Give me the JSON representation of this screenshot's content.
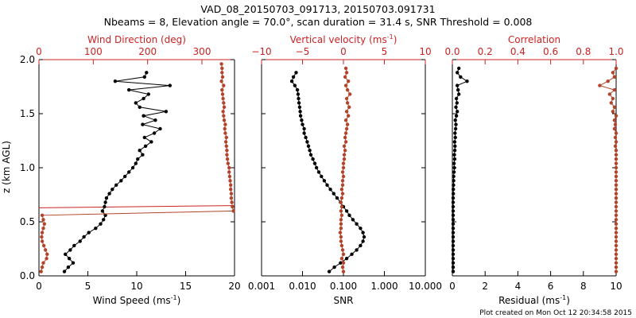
{
  "title_line1": "VAD_08_20150703_091713, 20150703.091731",
  "title_line2": "Nbeams = 8, Elevation angle = 70.0°, scan duration = 31.4 s, SNR Threshold = 0.008",
  "footer": "Plot created on Mon Oct 12 20:34:58 2015",
  "colors": {
    "black": "#000000",
    "red": "#cc2222",
    "marker_red": "#b5432a"
  },
  "chart_data": [
    {
      "type": "line",
      "name": "wind",
      "ylabel": "z (km AGL)",
      "ylim": [
        0,
        2.0
      ],
      "yticks": [
        0.0,
        0.5,
        1.0,
        1.5,
        2.0
      ],
      "ytick_labels": [
        "0.0",
        "0.5",
        "1.0",
        "1.5",
        "2.0"
      ],
      "bottom_axis": {
        "label": "Wind Speed (ms",
        "label_sup": "-1",
        "label_end": ")",
        "range": [
          0,
          20
        ],
        "ticks": [
          0,
          5,
          10,
          15,
          20
        ],
        "tick_labels": [
          "0",
          "5",
          "10",
          "15",
          "20"
        ]
      },
      "top_axis": {
        "label": "Wind Direction (deg)",
        "range": [
          0,
          360
        ],
        "ticks": [
          0,
          100,
          200,
          300
        ],
        "tick_labels": [
          "0",
          "100",
          "200",
          "300"
        ]
      },
      "series": [
        {
          "name": "Wind Speed",
          "axis": "bottom",
          "color": "#000000",
          "z": [
            0.04,
            0.08,
            0.12,
            0.16,
            0.2,
            0.24,
            0.28,
            0.32,
            0.36,
            0.4,
            0.44,
            0.48,
            0.52,
            0.56,
            0.6,
            0.64,
            0.68,
            0.72,
            0.76,
            0.8,
            0.84,
            0.88,
            0.92,
            0.96,
            1.0,
            1.04,
            1.08,
            1.12,
            1.16,
            1.2,
            1.24,
            1.28,
            1.32,
            1.36,
            1.4,
            1.44,
            1.48,
            1.52,
            1.56,
            1.6,
            1.64,
            1.68,
            1.72,
            1.76,
            1.8,
            1.84,
            1.88
          ],
          "values": [
            2.6,
            3.0,
            3.5,
            3.1,
            2.7,
            3.2,
            3.6,
            4.2,
            4.6,
            5.1,
            5.8,
            6.3,
            6.6,
            6.8,
            6.5,
            6.7,
            6.8,
            6.9,
            7.2,
            7.5,
            7.9,
            8.4,
            8.8,
            9.2,
            9.6,
            9.9,
            10.1,
            10.6,
            10.3,
            10.9,
            11.5,
            10.8,
            11.8,
            12.4,
            10.6,
            11.9,
            10.7,
            13.0,
            10.3,
            9.9,
            10.7,
            11.2,
            9.2,
            13.4,
            7.8,
            10.8,
            11.0
          ]
        },
        {
          "name": "Wind Direction",
          "axis": "top",
          "color": "#b5432a",
          "z": [
            0.04,
            0.08,
            0.12,
            0.16,
            0.2,
            0.24,
            0.28,
            0.32,
            0.36,
            0.4,
            0.44,
            0.48,
            0.52,
            0.56,
            0.6,
            0.64,
            0.68,
            0.72,
            0.76,
            0.8,
            0.84,
            0.88,
            0.92,
            0.96,
            1.0,
            1.04,
            1.08,
            1.12,
            1.16,
            1.2,
            1.24,
            1.28,
            1.32,
            1.36,
            1.4,
            1.44,
            1.48,
            1.52,
            1.56,
            1.6,
            1.64,
            1.68,
            1.72,
            1.76,
            1.8,
            1.84,
            1.88,
            1.92,
            1.96
          ],
          "values": [
            4,
            6,
            8,
            14,
            15,
            12,
            9,
            6,
            5,
            6,
            8,
            10,
            8,
            6,
            358,
            356,
            355,
            354,
            354,
            353,
            353,
            352,
            351,
            350,
            350,
            348,
            347,
            346,
            346,
            345,
            344,
            345,
            343,
            342,
            343,
            341,
            340,
            339,
            341,
            340,
            339,
            338,
            337,
            340,
            336,
            338,
            337,
            337,
            336
          ]
        }
      ],
      "annotation_line": {
        "color": "#cc2222",
        "z_left": 0.63,
        "z_right": 0.65
      }
    },
    {
      "type": "line",
      "name": "snr",
      "bottom_axis": {
        "label": "SNR",
        "scale": "log",
        "range": [
          0.001,
          10
        ],
        "ticks": [
          0.001,
          0.01,
          0.1,
          1,
          10
        ],
        "tick_labels": [
          "0.001",
          "0.010",
          "0.100",
          "1.000",
          "10.000"
        ]
      },
      "top_axis": {
        "label": "Vertical velocity (ms",
        "label_sup": "-1",
        "label_end": ")",
        "range": [
          -10,
          10
        ],
        "ticks": [
          -10,
          -5,
          0,
          5,
          10
        ],
        "tick_labels": [
          "−10",
          "−5",
          "0",
          "5",
          "10"
        ]
      },
      "series": [
        {
          "name": "SNR",
          "axis": "bottom",
          "color": "#000000",
          "z": [
            0.04,
            0.08,
            0.12,
            0.16,
            0.2,
            0.24,
            0.28,
            0.32,
            0.36,
            0.4,
            0.44,
            0.48,
            0.52,
            0.56,
            0.6,
            0.64,
            0.68,
            0.72,
            0.76,
            0.8,
            0.84,
            0.88,
            0.92,
            0.96,
            1.0,
            1.04,
            1.08,
            1.12,
            1.16,
            1.2,
            1.24,
            1.28,
            1.32,
            1.36,
            1.4,
            1.44,
            1.48,
            1.52,
            1.56,
            1.6,
            1.64,
            1.68,
            1.72,
            1.76,
            1.8,
            1.84,
            1.88
          ],
          "values": [
            0.045,
            0.06,
            0.085,
            0.12,
            0.16,
            0.21,
            0.26,
            0.3,
            0.32,
            0.3,
            0.26,
            0.21,
            0.17,
            0.14,
            0.12,
            0.1,
            0.085,
            0.07,
            0.058,
            0.048,
            0.04,
            0.034,
            0.029,
            0.025,
            0.022,
            0.02,
            0.018,
            0.016,
            0.015,
            0.014,
            0.013,
            0.012,
            0.011,
            0.011,
            0.01,
            0.0095,
            0.009,
            0.0088,
            0.0085,
            0.0082,
            0.008,
            0.0078,
            0.0075,
            0.0065,
            0.0055,
            0.006,
            0.007
          ]
        },
        {
          "name": "Vertical velocity",
          "axis": "top",
          "color": "#b5432a",
          "z": [
            0.04,
            0.08,
            0.12,
            0.16,
            0.2,
            0.24,
            0.28,
            0.32,
            0.36,
            0.4,
            0.44,
            0.48,
            0.52,
            0.56,
            0.6,
            0.64,
            0.68,
            0.72,
            0.76,
            0.8,
            0.84,
            0.88,
            0.92,
            0.96,
            1.0,
            1.04,
            1.08,
            1.12,
            1.16,
            1.2,
            1.24,
            1.28,
            1.32,
            1.36,
            1.4,
            1.44,
            1.48,
            1.52,
            1.56,
            1.6,
            1.64,
            1.68,
            1.72,
            1.76,
            1.8,
            1.84,
            1.88,
            1.92
          ],
          "values": [
            0.0,
            -0.1,
            0.0,
            -0.2,
            0.0,
            -0.1,
            -0.2,
            -0.3,
            -0.3,
            -0.4,
            -0.3,
            -0.3,
            -0.3,
            -0.2,
            -0.3,
            -0.2,
            -0.3,
            -0.2,
            -0.1,
            -0.2,
            -0.1,
            -0.1,
            0.0,
            -0.1,
            0.0,
            0.0,
            0.1,
            0.1,
            0.2,
            0.1,
            0.3,
            0.2,
            0.3,
            0.4,
            0.5,
            0.3,
            0.6,
            0.4,
            0.7,
            0.5,
            0.4,
            0.8,
            0.5,
            0.3,
            0.6,
            0.2,
            0.4,
            0.3
          ]
        }
      ]
    },
    {
      "type": "line",
      "name": "quality",
      "bottom_axis": {
        "label": "Residual (ms",
        "label_sup": "-1",
        "label_end": ")",
        "range": [
          0,
          10
        ],
        "ticks": [
          0,
          2,
          4,
          6,
          8,
          10
        ],
        "tick_labels": [
          "0",
          "2",
          "4",
          "6",
          "8",
          "10"
        ]
      },
      "top_axis": {
        "label": "Correlation",
        "range": [
          0,
          1.0
        ],
        "ticks": [
          0,
          0.2,
          0.4,
          0.6,
          0.8,
          1.0
        ],
        "tick_labels": [
          "0.0",
          "0.2",
          "0.4",
          "0.6",
          "0.8",
          "1.0"
        ]
      },
      "series": [
        {
          "name": "Residual",
          "axis": "bottom",
          "color": "#000000",
          "z": [
            0.04,
            0.08,
            0.12,
            0.16,
            0.2,
            0.24,
            0.28,
            0.32,
            0.36,
            0.4,
            0.44,
            0.48,
            0.52,
            0.56,
            0.6,
            0.64,
            0.68,
            0.72,
            0.76,
            0.8,
            0.84,
            0.88,
            0.92,
            0.96,
            1.0,
            1.04,
            1.08,
            1.12,
            1.16,
            1.2,
            1.24,
            1.28,
            1.32,
            1.36,
            1.4,
            1.44,
            1.48,
            1.52,
            1.56,
            1.6,
            1.64,
            1.68,
            1.72,
            1.76,
            1.8,
            1.84,
            1.88,
            1.92
          ],
          "values": [
            0.05,
            0.05,
            0.05,
            0.05,
            0.05,
            0.05,
            0.05,
            0.05,
            0.05,
            0.05,
            0.05,
            0.05,
            0.05,
            0.05,
            0.05,
            0.05,
            0.05,
            0.05,
            0.06,
            0.06,
            0.07,
            0.08,
            0.08,
            0.1,
            0.12,
            0.1,
            0.14,
            0.12,
            0.15,
            0.16,
            0.14,
            0.18,
            0.16,
            0.2,
            0.22,
            0.18,
            0.25,
            0.3,
            0.22,
            0.28,
            0.25,
            0.4,
            0.35,
            0.3,
            0.9,
            0.5,
            0.3,
            0.4
          ]
        },
        {
          "name": "Correlation",
          "axis": "top",
          "color": "#b5432a",
          "z": [
            0.04,
            0.08,
            0.12,
            0.16,
            0.2,
            0.24,
            0.28,
            0.32,
            0.36,
            0.4,
            0.44,
            0.48,
            0.52,
            0.56,
            0.6,
            0.64,
            0.68,
            0.72,
            0.76,
            0.8,
            0.84,
            0.88,
            0.92,
            0.96,
            1.0,
            1.04,
            1.08,
            1.12,
            1.16,
            1.2,
            1.24,
            1.28,
            1.32,
            1.36,
            1.4,
            1.44,
            1.48,
            1.52,
            1.56,
            1.6,
            1.64,
            1.68,
            1.72,
            1.76,
            1.8,
            1.84,
            1.88,
            1.92
          ],
          "values": [
            1.0,
            1.0,
            1.0,
            1.0,
            1.0,
            1.0,
            1.0,
            1.0,
            1.0,
            1.0,
            1.0,
            1.0,
            1.0,
            1.0,
            1.0,
            1.0,
            1.0,
            1.0,
            1.0,
            1.0,
            1.0,
            1.0,
            1.0,
            1.0,
            1.0,
            1.0,
            1.0,
            1.0,
            1.0,
            0.995,
            1.0,
            0.995,
            1.0,
            0.99,
            0.995,
            0.99,
            1.0,
            0.98,
            0.99,
            0.97,
            0.98,
            0.96,
            0.99,
            0.9,
            0.95,
            0.99,
            0.98,
            1.0
          ]
        }
      ]
    }
  ]
}
